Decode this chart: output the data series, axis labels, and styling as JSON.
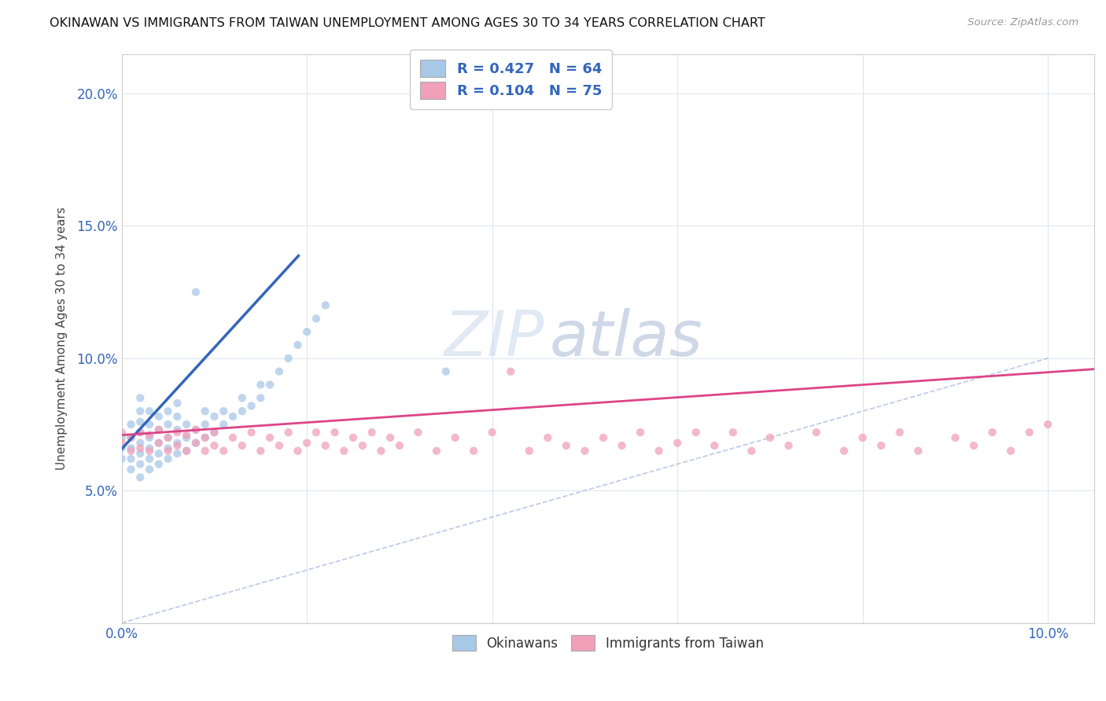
{
  "title": "OKINAWAN VS IMMIGRANTS FROM TAIWAN UNEMPLOYMENT AMONG AGES 30 TO 34 YEARS CORRELATION CHART",
  "source": "Source: ZipAtlas.com",
  "ylabel": "Unemployment Among Ages 30 to 34 years",
  "xlim": [
    0.0,
    0.105
  ],
  "ylim": [
    0.0,
    0.215
  ],
  "xticks": [
    0.0,
    0.02,
    0.04,
    0.06,
    0.08,
    0.1
  ],
  "yticks": [
    0.0,
    0.05,
    0.1,
    0.15,
    0.2
  ],
  "xtick_labels": [
    "0.0%",
    "",
    "",
    "",
    "",
    "10.0%"
  ],
  "ytick_labels": [
    "",
    "5.0%",
    "10.0%",
    "15.0%",
    "20.0%"
  ],
  "blue_R": 0.427,
  "blue_N": 64,
  "pink_R": 0.104,
  "pink_N": 75,
  "blue_color": "#a8c8e8",
  "pink_color": "#f0a0b8",
  "blue_line_color": "#3366bb",
  "pink_line_color": "#dd4488",
  "diagonal_color": "#aabbdd",
  "watermark_zip": "ZIP",
  "watermark_atlas": "atlas",
  "legend_label_blue": "Okinawans",
  "legend_label_pink": "Immigrants from Taiwan",
  "blue_scatter_x": [
    0.0,
    0.0,
    0.0,
    0.001,
    0.001,
    0.001,
    0.001,
    0.001,
    0.002,
    0.002,
    0.002,
    0.002,
    0.002,
    0.002,
    0.002,
    0.002,
    0.003,
    0.003,
    0.003,
    0.003,
    0.003,
    0.003,
    0.004,
    0.004,
    0.004,
    0.004,
    0.004,
    0.005,
    0.005,
    0.005,
    0.005,
    0.005,
    0.006,
    0.006,
    0.006,
    0.006,
    0.006,
    0.007,
    0.007,
    0.007,
    0.008,
    0.008,
    0.008,
    0.009,
    0.009,
    0.009,
    0.01,
    0.01,
    0.011,
    0.011,
    0.012,
    0.013,
    0.013,
    0.014,
    0.015,
    0.015,
    0.016,
    0.017,
    0.018,
    0.019,
    0.02,
    0.021,
    0.022,
    0.035
  ],
  "blue_scatter_y": [
    0.062,
    0.066,
    0.07,
    0.058,
    0.062,
    0.066,
    0.07,
    0.075,
    0.055,
    0.06,
    0.064,
    0.068,
    0.072,
    0.076,
    0.08,
    0.085,
    0.058,
    0.062,
    0.066,
    0.07,
    0.075,
    0.08,
    0.06,
    0.064,
    0.068,
    0.073,
    0.078,
    0.062,
    0.066,
    0.07,
    0.075,
    0.08,
    0.064,
    0.068,
    0.073,
    0.078,
    0.083,
    0.065,
    0.07,
    0.075,
    0.068,
    0.073,
    0.125,
    0.07,
    0.075,
    0.08,
    0.072,
    0.078,
    0.075,
    0.08,
    0.078,
    0.08,
    0.085,
    0.082,
    0.085,
    0.09,
    0.09,
    0.095,
    0.1,
    0.105,
    0.11,
    0.115,
    0.12,
    0.095
  ],
  "pink_scatter_x": [
    0.0,
    0.0,
    0.001,
    0.001,
    0.002,
    0.002,
    0.003,
    0.003,
    0.004,
    0.004,
    0.005,
    0.005,
    0.006,
    0.006,
    0.007,
    0.007,
    0.008,
    0.008,
    0.009,
    0.009,
    0.01,
    0.01,
    0.011,
    0.012,
    0.013,
    0.014,
    0.015,
    0.016,
    0.017,
    0.018,
    0.019,
    0.02,
    0.021,
    0.022,
    0.023,
    0.024,
    0.025,
    0.026,
    0.027,
    0.028,
    0.029,
    0.03,
    0.032,
    0.034,
    0.036,
    0.038,
    0.04,
    0.042,
    0.044,
    0.046,
    0.048,
    0.05,
    0.052,
    0.054,
    0.056,
    0.058,
    0.06,
    0.062,
    0.064,
    0.066,
    0.068,
    0.07,
    0.072,
    0.075,
    0.078,
    0.08,
    0.082,
    0.084,
    0.086,
    0.09,
    0.092,
    0.094,
    0.096,
    0.098,
    0.1
  ],
  "pink_scatter_y": [
    0.068,
    0.072,
    0.065,
    0.07,
    0.066,
    0.072,
    0.065,
    0.071,
    0.068,
    0.073,
    0.065,
    0.07,
    0.067,
    0.072,
    0.065,
    0.071,
    0.068,
    0.073,
    0.065,
    0.07,
    0.067,
    0.072,
    0.065,
    0.07,
    0.067,
    0.072,
    0.065,
    0.07,
    0.067,
    0.072,
    0.065,
    0.068,
    0.072,
    0.067,
    0.072,
    0.065,
    0.07,
    0.067,
    0.072,
    0.065,
    0.07,
    0.067,
    0.072,
    0.065,
    0.07,
    0.065,
    0.072,
    0.095,
    0.065,
    0.07,
    0.067,
    0.065,
    0.07,
    0.067,
    0.072,
    0.065,
    0.068,
    0.072,
    0.067,
    0.072,
    0.065,
    0.07,
    0.067,
    0.072,
    0.065,
    0.07,
    0.067,
    0.072,
    0.065,
    0.07,
    0.067,
    0.072,
    0.065,
    0.072,
    0.075
  ]
}
